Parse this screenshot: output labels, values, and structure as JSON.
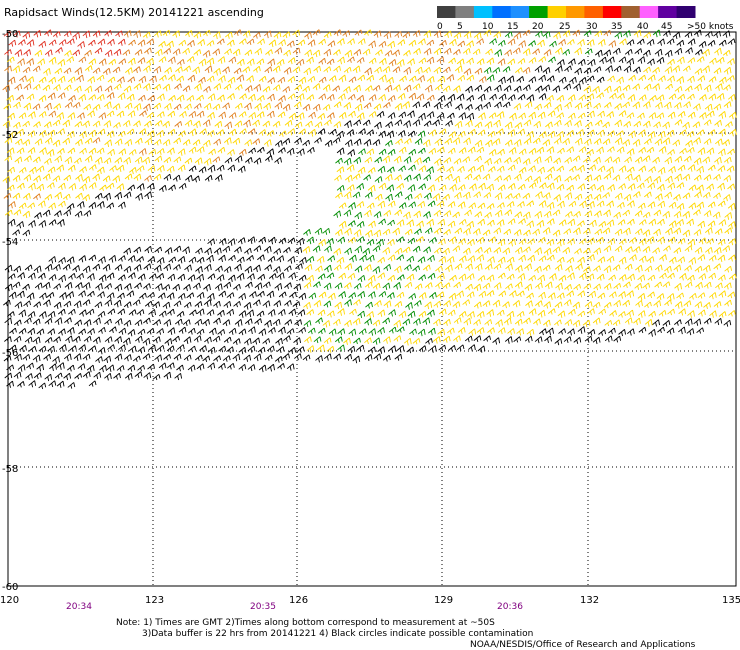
{
  "title": "Rapidsact Winds(12.5KM) 20141221 ascending",
  "colorbar": {
    "colors": [
      "#404040",
      "#7f7f7f",
      "#00c0ff",
      "#0070ff",
      "#1e90ff",
      "#00a000",
      "#ffd000",
      "#ff9900",
      "#ff6000",
      "#ff0000",
      "#a06030",
      "#ff60ff",
      "#6000a0",
      "#300070"
    ],
    "labels": [
      "0",
      "5",
      "10",
      "15",
      "20",
      "25",
      "30",
      "35",
      "40",
      "45",
      ">50 knots"
    ]
  },
  "map": {
    "lon_ticks": [
      "120",
      "123",
      "126",
      "129",
      "132",
      "135"
    ],
    "lat_ticks": [
      "-50",
      "-52",
      "-54",
      "-56",
      "-58",
      "-60"
    ],
    "times": [
      "20:34",
      "20:35",
      "20:36"
    ],
    "barb_colors": {
      "black": "#000000",
      "green": "#008c00",
      "yellow": "#ffd800",
      "orange": "#e08020",
      "red": "#e03020"
    }
  },
  "notes": {
    "line1": "Note: 1) Times are GMT 2)Times along bottom correspond to measurement at ~50S",
    "line2": "3)Data buffer is 22 hrs from 20141221 4) Black circles indicate possible contamination",
    "credit": "NOAA/NESDIS/Office of Research and Applications"
  }
}
